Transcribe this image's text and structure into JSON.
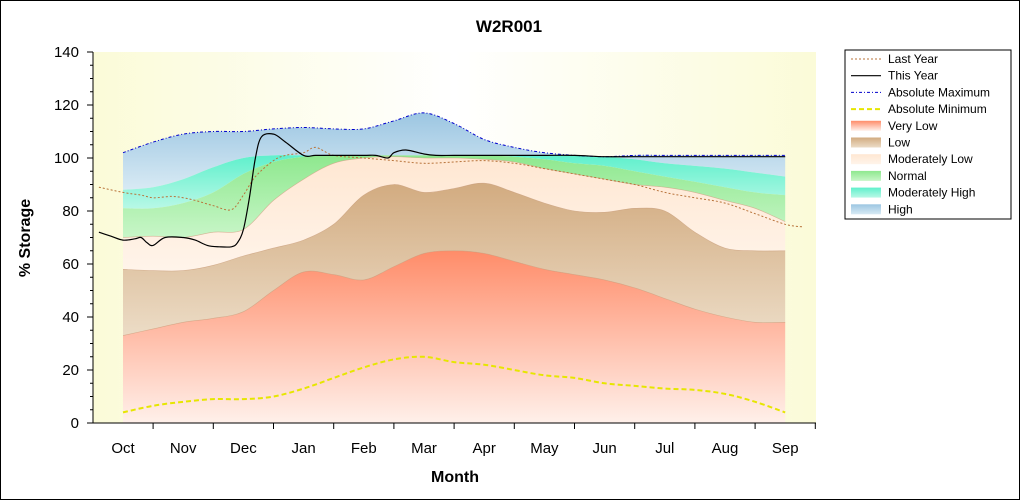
{
  "chart_data": {
    "type": "area",
    "title": "W2R001",
    "xlabel": "Month",
    "ylabel": "% Storage",
    "ylim": [
      0,
      140
    ],
    "yticks": [
      0,
      20,
      40,
      60,
      80,
      100,
      120,
      140
    ],
    "categories": [
      "Oct",
      "Nov",
      "Dec",
      "Jan",
      "Feb",
      "Mar",
      "Apr",
      "May",
      "Jun",
      "Jul",
      "Aug",
      "Sep"
    ],
    "grid": false,
    "legend_position": "right",
    "bands": {
      "x": [
        0,
        0.5,
        1,
        1.5,
        2,
        2.5,
        3,
        3.5,
        4,
        4.5,
        5,
        5.5,
        6,
        6.5,
        7,
        7.5,
        8,
        8.5,
        9,
        9.5,
        10,
        10.5,
        11
      ],
      "absolute_minimum": [
        4,
        6.5,
        8,
        9,
        9,
        10,
        13,
        17,
        21,
        24,
        25,
        23,
        22,
        20,
        18,
        17,
        15,
        14,
        13,
        12.5,
        11,
        8,
        4
      ],
      "very_low_top": [
        33,
        35.5,
        38,
        39.5,
        42,
        50,
        57,
        56,
        54,
        59,
        64,
        65,
        64,
        61,
        58,
        56,
        54,
        51,
        47,
        43,
        40,
        38,
        38
      ],
      "low_top": [
        58,
        57.5,
        57.5,
        59.5,
        63,
        66,
        69,
        75,
        86,
        90,
        87,
        88.5,
        90.5,
        87,
        83,
        80,
        79.5,
        81,
        80,
        72,
        66,
        65,
        65
      ],
      "moderately_low_top": [
        70,
        70.5,
        70,
        72,
        73,
        84,
        92,
        98,
        100,
        100.5,
        100,
        100,
        99.5,
        98.5,
        96,
        94,
        92,
        90,
        89,
        87,
        84,
        81,
        76
      ],
      "normal_top": [
        81,
        81,
        83,
        87,
        94,
        98.5,
        100.5,
        101,
        101,
        101,
        101,
        101,
        101,
        100.5,
        99.5,
        98,
        97,
        95,
        93,
        91,
        89,
        87,
        86
      ],
      "moderately_high_top": [
        88,
        89,
        92,
        96.5,
        100,
        101,
        101,
        101,
        101,
        101,
        101,
        101,
        101,
        101,
        101,
        101,
        100.5,
        99.5,
        98,
        97,
        96,
        94.5,
        93
      ],
      "absolute_maximum": [
        102,
        106,
        109,
        110,
        110,
        111,
        111.5,
        111,
        111,
        114,
        117,
        113,
        107,
        104,
        102,
        101,
        100.5,
        101,
        101,
        101,
        101,
        101,
        101
      ]
    },
    "series": [
      {
        "name": "Last Year",
        "x": [
          -0.4,
          0,
          0.3,
          0.5,
          0.8,
          1,
          1.2,
          1.5,
          1.8,
          2,
          2.2,
          2.5,
          2.7,
          3,
          3.2,
          3.5,
          4,
          4.5,
          5,
          5.5,
          6,
          6.5,
          7,
          7.5,
          8,
          8.5,
          9,
          9.5,
          10,
          10.5,
          11,
          11.3
        ],
        "y": [
          89,
          87,
          86,
          85,
          85.5,
          85,
          84,
          82,
          80.5,
          86,
          93,
          99,
          101,
          102,
          104,
          101,
          100,
          99,
          98,
          98.5,
          99,
          98,
          96,
          94,
          92,
          90,
          87,
          85,
          83,
          79,
          75,
          74
        ]
      },
      {
        "name": "This Year",
        "x": [
          -0.4,
          -0.2,
          0,
          0.2,
          0.3,
          0.4,
          0.5,
          0.7,
          1,
          1.2,
          1.4,
          1.6,
          1.8,
          1.9,
          2,
          2.1,
          2.2,
          2.3,
          2.5,
          2.7,
          3,
          3.2,
          3.5,
          4,
          4.2,
          4.4,
          4.5,
          4.7,
          5,
          5.2,
          5.5,
          6,
          6.5,
          7,
          7.5,
          8,
          8.5,
          9,
          9.5,
          10,
          10.5,
          11
        ],
        "y": [
          72,
          70.5,
          69,
          69.5,
          70,
          68,
          67,
          70,
          70,
          69,
          67,
          66.5,
          66.5,
          68,
          73,
          85,
          100,
          108,
          109,
          106,
          101,
          101,
          101,
          101,
          101,
          100,
          102,
          103,
          101.5,
          101,
          101,
          101,
          101,
          101,
          101,
          100.5,
          100.5,
          100.5,
          100.5,
          100.5,
          100.5,
          100.5
        ]
      }
    ],
    "legend": [
      "Last Year",
      "This Year",
      "Absolute Maximum",
      "Absolute Minimum",
      "Very Low",
      "Low",
      "Moderately Low",
      "Normal",
      "Moderately High",
      "High"
    ],
    "colors": {
      "very_low": "#ff8c69",
      "low": "#d7b48c",
      "moderately_low": "#ffe4cc",
      "normal": "#8ee88e",
      "moderately_high": "#66f0cc",
      "high": "#a9cfe6",
      "last_year": "#b8733a",
      "this_year": "#000000",
      "absolute_maximum": "#0000cc",
      "absolute_minimum": "#e6e600",
      "plot_background": "#fbfbe4"
    }
  }
}
